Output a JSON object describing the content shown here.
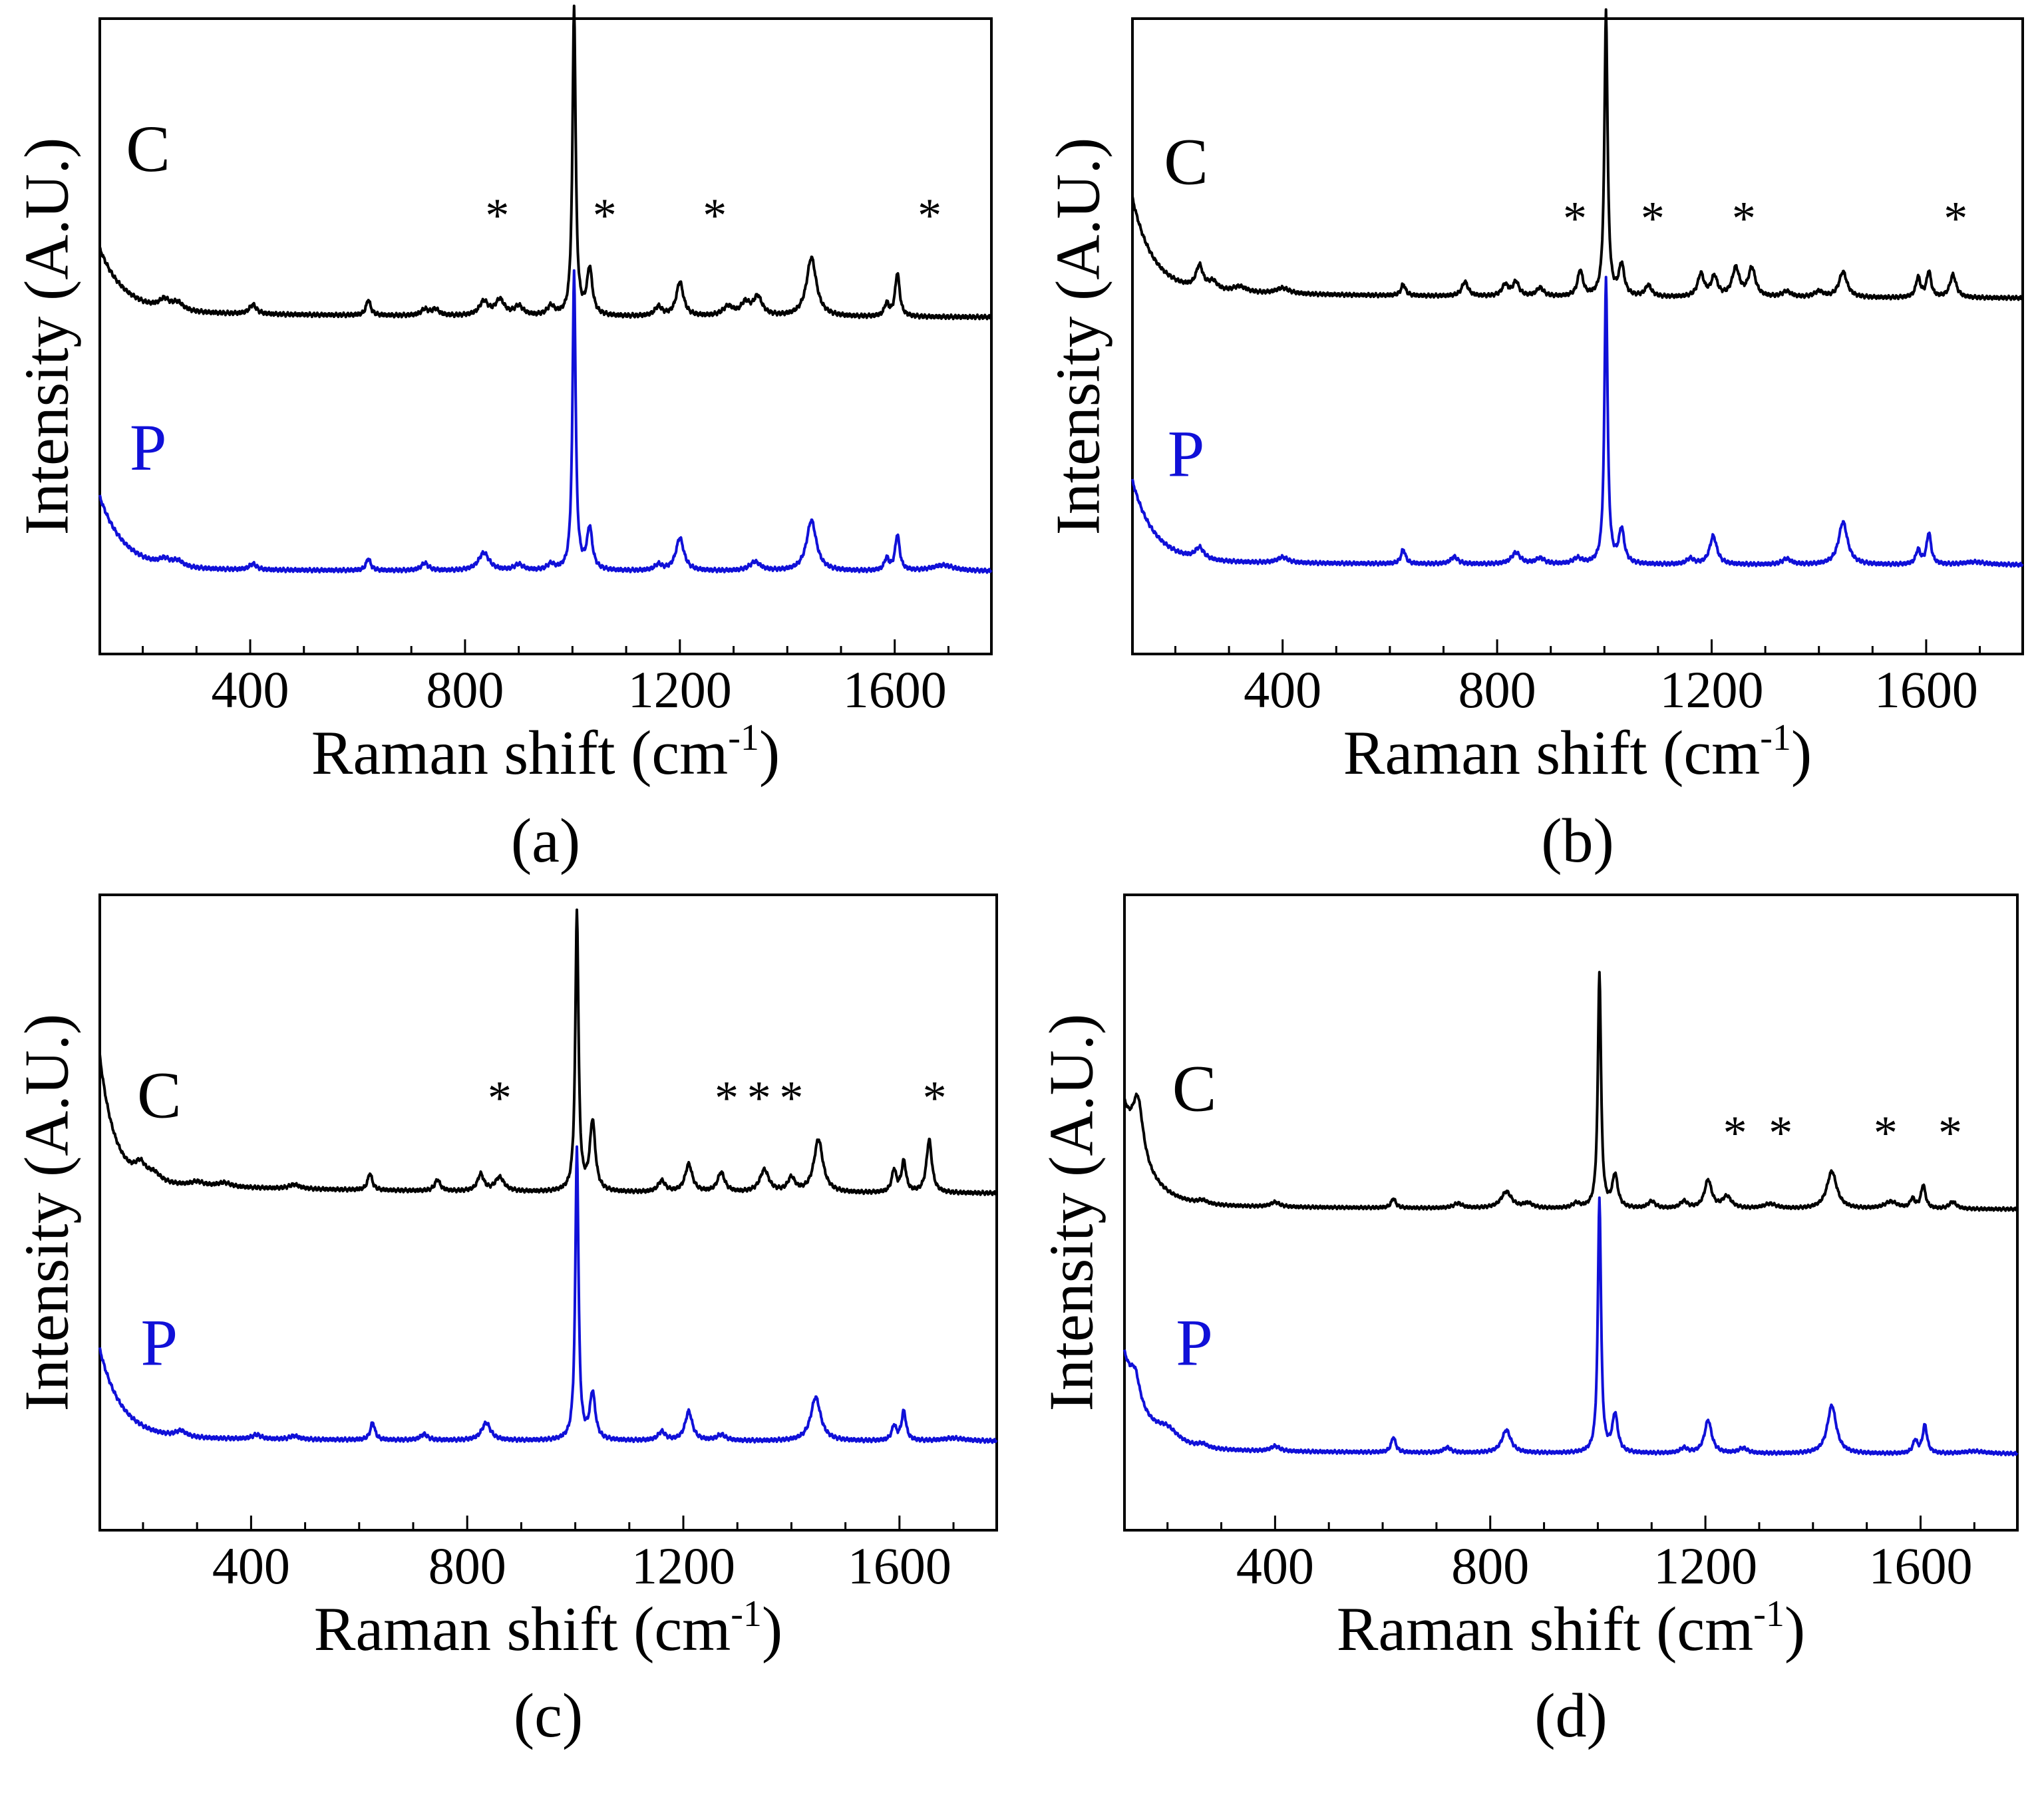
{
  "chart_data": [
    {
      "type": "line",
      "panel_label": "(a)",
      "xlabel": "Raman shift (cm",
      "xlabel_sup": "-1",
      "xlabel_close": ")",
      "ylabel": "Intensity (A.U.)",
      "xlim": [
        120,
        1780
      ],
      "x_ticks": [
        400,
        800,
        1200,
        1600
      ],
      "x_tick_labels": [
        "400",
        "800",
        "1200",
        "1600"
      ],
      "y_ticks_shown": false,
      "series": [
        {
          "name": "C",
          "color": "#000000",
          "baseline": 0.53,
          "amplitude": 0.49,
          "background": {
            "a": 0.2,
            "tau": 45,
            "tail": 0.02
          },
          "peaks": [
            [
              240,
              0.03,
              12
            ],
            [
              265,
              0.025,
              12
            ],
            [
              405,
              0.03,
              8
            ],
            [
              620,
              0.05,
              5
            ],
            [
              725,
              0.02,
              8
            ],
            [
              745,
              0.02,
              8
            ],
            [
              835,
              0.045,
              10
            ],
            [
              865,
              0.05,
              10
            ],
            [
              900,
              0.03,
              10
            ],
            [
              960,
              0.03,
              8
            ],
            [
              1003,
              1.0,
              3.5
            ],
            [
              1032,
              0.15,
              6
            ],
            [
              1160,
              0.03,
              8
            ],
            [
              1200,
              0.11,
              8
            ],
            [
              1290,
              0.03,
              12
            ],
            [
              1322,
              0.04,
              10
            ],
            [
              1345,
              0.06,
              10
            ],
            [
              1445,
              0.19,
              11
            ],
            [
              1585,
              0.04,
              5
            ],
            [
              1605,
              0.14,
              5
            ]
          ]
        },
        {
          "name": "P",
          "color": "#1010d8",
          "baseline": 0.13,
          "amplitude": 0.47,
          "background": {
            "a": 0.24,
            "tau": 45,
            "tail": 0.01
          },
          "peaks": [
            [
              240,
              0.02,
              12
            ],
            [
              265,
              0.02,
              12
            ],
            [
              405,
              0.02,
              8
            ],
            [
              620,
              0.04,
              5
            ],
            [
              725,
              0.025,
              8
            ],
            [
              835,
              0.06,
              12
            ],
            [
              900,
              0.02,
              10
            ],
            [
              960,
              0.02,
              8
            ],
            [
              1003,
              1.0,
              3.5
            ],
            [
              1032,
              0.14,
              6
            ],
            [
              1160,
              0.02,
              8
            ],
            [
              1200,
              0.11,
              9
            ],
            [
              1340,
              0.03,
              12
            ],
            [
              1445,
              0.17,
              11
            ],
            [
              1585,
              0.04,
              5
            ],
            [
              1605,
              0.12,
              5
            ],
            [
              1690,
              0.02,
              25
            ]
          ]
        }
      ],
      "annotations": [
        {
          "text": "C",
          "x": 210,
          "y": 0.76,
          "color": "#000000"
        },
        {
          "text": "P",
          "x": 210,
          "y": 0.29,
          "color": "#1010d8"
        },
        {
          "text": "*",
          "x": 860,
          "y": 0.665,
          "color": "#000000"
        },
        {
          "text": "*",
          "x": 1060,
          "y": 0.665,
          "color": "#000000"
        },
        {
          "text": "*",
          "x": 1265,
          "y": 0.665,
          "color": "#000000"
        },
        {
          "text": "*",
          "x": 1665,
          "y": 0.665,
          "color": "#000000"
        }
      ]
    },
    {
      "type": "line",
      "panel_label": "(b)",
      "xlabel": "Raman shift (cm",
      "xlabel_sup": "-1",
      "xlabel_close": ")",
      "ylabel": "Intensity (A.U.)",
      "xlim": [
        120,
        1780
      ],
      "x_ticks": [
        400,
        800,
        1200,
        1600
      ],
      "x_tick_labels": [
        "400",
        "800",
        "1200",
        "1600"
      ],
      "y_ticks_shown": false,
      "series": [
        {
          "name": "C",
          "color": "#000000",
          "baseline": 0.56,
          "amplitude": 0.45,
          "background": {
            "a": 0.32,
            "tau": 38,
            "tail": 0.03
          },
          "peaks": [
            [
              245,
              0.08,
              8
            ],
            [
              270,
              0.03,
              10
            ],
            [
              320,
              0.02,
              15
            ],
            [
              400,
              0.02,
              15
            ],
            [
              625,
              0.04,
              5
            ],
            [
              740,
              0.05,
              7
            ],
            [
              815,
              0.04,
              7
            ],
            [
              835,
              0.05,
              7
            ],
            [
              880,
              0.03,
              8
            ],
            [
              955,
              0.09,
              6
            ],
            [
              1003,
              1.0,
              3.5
            ],
            [
              1032,
              0.11,
              6
            ],
            [
              1082,
              0.04,
              7
            ],
            [
              1180,
              0.08,
              7
            ],
            [
              1205,
              0.07,
              7
            ],
            [
              1245,
              0.1,
              8
            ],
            [
              1275,
              0.1,
              8
            ],
            [
              1340,
              0.02,
              10
            ],
            [
              1400,
              0.02,
              10
            ],
            [
              1445,
              0.09,
              9
            ],
            [
              1585,
              0.07,
              5
            ],
            [
              1605,
              0.09,
              5
            ],
            [
              1650,
              0.08,
              7
            ]
          ]
        },
        {
          "name": "P",
          "color": "#1010d8",
          "baseline": 0.14,
          "amplitude": 0.45,
          "background": {
            "a": 0.28,
            "tau": 40,
            "tail": 0.015
          },
          "peaks": [
            [
              245,
              0.04,
              10
            ],
            [
              400,
              0.02,
              12
            ],
            [
              625,
              0.05,
              5
            ],
            [
              720,
              0.025,
              8
            ],
            [
              835,
              0.04,
              10
            ],
            [
              880,
              0.02,
              10
            ],
            [
              950,
              0.02,
              10
            ],
            [
              1003,
              1.0,
              3.5
            ],
            [
              1032,
              0.12,
              6
            ],
            [
              1160,
              0.02,
              8
            ],
            [
              1203,
              0.1,
              8
            ],
            [
              1340,
              0.02,
              10
            ],
            [
              1445,
              0.15,
              10
            ],
            [
              1585,
              0.05,
              5
            ],
            [
              1605,
              0.11,
              5
            ],
            [
              1690,
              0.01,
              25
            ]
          ]
        }
      ],
      "annotations": [
        {
          "text": "C",
          "x": 220,
          "y": 0.74,
          "color": "#000000"
        },
        {
          "text": "P",
          "x": 220,
          "y": 0.28,
          "color": "#1010d8"
        },
        {
          "text": "*",
          "x": 945,
          "y": 0.66,
          "color": "#000000"
        },
        {
          "text": "*",
          "x": 1090,
          "y": 0.66,
          "color": "#000000"
        },
        {
          "text": "*",
          "x": 1260,
          "y": 0.66,
          "color": "#000000"
        },
        {
          "text": "*",
          "x": 1655,
          "y": 0.66,
          "color": "#000000"
        }
      ]
    },
    {
      "type": "line",
      "panel_label": "(c)",
      "xlabel": "Raman shift (cm",
      "xlabel_sup": "-1",
      "xlabel_close": ")",
      "ylabel": "Intensity (A.U.)",
      "xlim": [
        120,
        1780
      ],
      "x_ticks": [
        400,
        800,
        1200,
        1600
      ],
      "x_tick_labels": [
        "400",
        "800",
        "1200",
        "1600"
      ],
      "y_ticks_shown": false,
      "series": [
        {
          "name": "C",
          "color": "#000000",
          "baseline": 0.53,
          "amplitude": 0.44,
          "background": {
            "a": 0.45,
            "tau": 28,
            "tail": 0.04
          },
          "peaks": [
            [
              195,
              0.05,
              12
            ],
            [
              220,
              0.03,
              15
            ],
            [
              300,
              0.015,
              15
            ],
            [
              350,
              0.015,
              15
            ],
            [
              480,
              0.015,
              12
            ],
            [
              620,
              0.06,
              5
            ],
            [
              745,
              0.04,
              6
            ],
            [
              825,
              0.06,
              7
            ],
            [
              860,
              0.05,
              10
            ],
            [
              1003,
              1.0,
              3.5
            ],
            [
              1032,
              0.25,
              6
            ],
            [
              1160,
              0.04,
              8
            ],
            [
              1210,
              0.1,
              8
            ],
            [
              1270,
              0.07,
              8
            ],
            [
              1350,
              0.08,
              10
            ],
            [
              1400,
              0.05,
              8
            ],
            [
              1450,
              0.19,
              10
            ],
            [
              1590,
              0.08,
              5
            ],
            [
              1608,
              0.11,
              5
            ],
            [
              1655,
              0.19,
              6
            ]
          ]
        },
        {
          "name": "P",
          "color": "#1010d8",
          "baseline": 0.14,
          "amplitude": 0.46,
          "background": {
            "a": 0.3,
            "tau": 40,
            "tail": 0.015
          },
          "peaks": [
            [
              270,
              0.02,
              12
            ],
            [
              410,
              0.015,
              10
            ],
            [
              480,
              0.012,
              10
            ],
            [
              625,
              0.06,
              5
            ],
            [
              720,
              0.02,
              8
            ],
            [
              835,
              0.06,
              10
            ],
            [
              1003,
              1.0,
              3.5
            ],
            [
              1032,
              0.16,
              6
            ],
            [
              1160,
              0.03,
              8
            ],
            [
              1210,
              0.1,
              8
            ],
            [
              1270,
              0.02,
              10
            ],
            [
              1445,
              0.15,
              11
            ],
            [
              1590,
              0.05,
              5
            ],
            [
              1608,
              0.1,
              5
            ],
            [
              1700,
              0.01,
              25
            ]
          ]
        }
      ],
      "annotations": [
        {
          "text": "C",
          "x": 230,
          "y": 0.65,
          "color": "#000000"
        },
        {
          "text": "P",
          "x": 230,
          "y": 0.26,
          "color": "#1010d8"
        },
        {
          "text": "*",
          "x": 860,
          "y": 0.655,
          "color": "#000000"
        },
        {
          "text": "*",
          "x": 1280,
          "y": 0.655,
          "color": "#000000"
        },
        {
          "text": "*",
          "x": 1340,
          "y": 0.655,
          "color": "#000000"
        },
        {
          "text": "*",
          "x": 1400,
          "y": 0.655,
          "color": "#000000"
        },
        {
          "text": "*",
          "x": 1665,
          "y": 0.655,
          "color": "#000000"
        }
      ]
    },
    {
      "type": "line",
      "panel_label": "(d)",
      "xlabel": "Raman shift (cm",
      "xlabel_sup": "-1",
      "xlabel_close": ")",
      "ylabel": "Intensity (A.U.)",
      "xlim": [
        120,
        1780
      ],
      "x_ticks": [
        400,
        800,
        1200,
        1600
      ],
      "x_tick_labels": [
        "400",
        "800",
        "1200",
        "1600"
      ],
      "y_ticks_shown": false,
      "series": [
        {
          "name": "C",
          "color": "#000000",
          "baseline": 0.505,
          "amplitude": 0.37,
          "background": {
            "a": 0.4,
            "tau": 40,
            "tail": 0.02
          },
          "peaks": [
            [
              145,
              0.25,
              12
            ],
            [
              265,
              0.015,
              10
            ],
            [
              400,
              0.02,
              10
            ],
            [
              620,
              0.04,
              5
            ],
            [
              740,
              0.02,
              10
            ],
            [
              830,
              0.07,
              12
            ],
            [
              870,
              0.02,
              10
            ],
            [
              960,
              0.02,
              8
            ],
            [
              1003,
              1.0,
              3.5
            ],
            [
              1032,
              0.14,
              6
            ],
            [
              1100,
              0.03,
              8
            ],
            [
              1160,
              0.03,
              8
            ],
            [
              1205,
              0.12,
              8
            ],
            [
              1240,
              0.05,
              10
            ],
            [
              1320,
              0.02,
              15
            ],
            [
              1435,
              0.16,
              11
            ],
            [
              1545,
              0.03,
              15
            ],
            [
              1585,
              0.04,
              5
            ],
            [
              1605,
              0.1,
              5
            ],
            [
              1660,
              0.03,
              8
            ]
          ]
        },
        {
          "name": "P",
          "color": "#1010d8",
          "baseline": 0.12,
          "amplitude": 0.4,
          "background": {
            "a": 0.36,
            "tau": 38,
            "tail": 0.02
          },
          "peaks": [
            [
              140,
              0.1,
              10
            ],
            [
              200,
              0.05,
              25
            ],
            [
              265,
              0.015,
              10
            ],
            [
              400,
              0.02,
              10
            ],
            [
              620,
              0.06,
              5
            ],
            [
              720,
              0.02,
              8
            ],
            [
              830,
              0.09,
              10
            ],
            [
              1003,
              1.0,
              3.5
            ],
            [
              1032,
              0.15,
              6
            ],
            [
              1160,
              0.02,
              8
            ],
            [
              1205,
              0.13,
              8
            ],
            [
              1270,
              0.02,
              10
            ],
            [
              1435,
              0.19,
              10
            ],
            [
              1590,
              0.05,
              5
            ],
            [
              1608,
              0.11,
              5
            ],
            [
              1700,
              0.01,
              25
            ]
          ]
        }
      ],
      "annotations": [
        {
          "text": "C",
          "x": 250,
          "y": 0.66,
          "color": "#000000"
        },
        {
          "text": "P",
          "x": 250,
          "y": 0.26,
          "color": "#1010d8"
        },
        {
          "text": "*",
          "x": 1255,
          "y": 0.6,
          "color": "#000000"
        },
        {
          "text": "*",
          "x": 1340,
          "y": 0.6,
          "color": "#000000"
        },
        {
          "text": "*",
          "x": 1535,
          "y": 0.6,
          "color": "#000000"
        },
        {
          "text": "*",
          "x": 1655,
          "y": 0.6,
          "color": "#000000"
        }
      ]
    }
  ]
}
